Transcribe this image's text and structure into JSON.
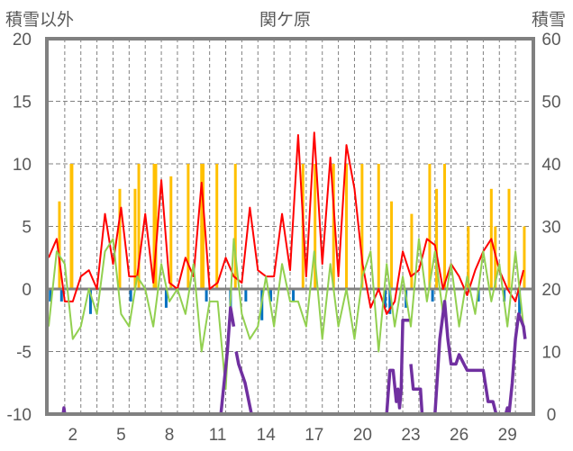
{
  "chart_data": {
    "type": "line",
    "title": "関ケ原",
    "ylabel_left": "積雪以外",
    "ylabel_right": "積雪",
    "ylim_left": [
      -10,
      20
    ],
    "ylim_right": [
      0,
      60
    ],
    "yticks_left": [
      "20",
      "15",
      "10",
      "5",
      "0",
      "-5",
      "-10"
    ],
    "yticks_right": [
      "60",
      "50",
      "40",
      "30",
      "20",
      "10",
      "0"
    ],
    "xlim_days": [
      1,
      31
    ],
    "xticks": [
      "2",
      "5",
      "8",
      "11",
      "14",
      "17",
      "20",
      "23",
      "26",
      "29"
    ],
    "grid": true,
    "colors": {
      "temperature": "#ff0000",
      "green": "#92d050",
      "precip": "#ffc000",
      "sunshine": "#0070c0",
      "snow": "#7030a0"
    },
    "series": [
      {
        "name": "red",
        "axis": "left",
        "x_start": 1,
        "x_step": 0.5,
        "values": [
          2.5,
          4,
          -1,
          -1,
          1,
          1.5,
          0,
          6,
          2,
          6.5,
          1,
          1,
          6,
          0.5,
          8.7,
          0.5,
          0,
          2.5,
          1,
          8.5,
          0,
          0.5,
          2.5,
          1,
          0.5,
          6.5,
          1.5,
          1,
          1,
          6,
          1.5,
          12.3,
          1,
          12.5,
          2,
          10.5,
          1,
          11.5,
          8,
          2,
          -1.5,
          0,
          -2,
          -1,
          3,
          1,
          1.5,
          4,
          3.5,
          0,
          2,
          1,
          -0.5,
          1.5,
          3,
          4,
          1.5,
          0,
          -1,
          1.5
        ]
      },
      {
        "name": "green",
        "axis": "left",
        "x_start": 1,
        "x_step": 0.5,
        "values": [
          -3,
          3,
          2,
          -4,
          -3,
          0,
          -2,
          3,
          4,
          -2,
          -3,
          1,
          0,
          -3,
          2,
          -1,
          0,
          -2,
          2,
          -5,
          -1,
          -1,
          -8,
          4,
          -2,
          -4,
          -3,
          1,
          -3,
          2,
          -1,
          -1,
          -3,
          3,
          -4,
          2,
          -3,
          0,
          -4,
          1,
          3,
          -5,
          2,
          -3,
          1,
          -3,
          4,
          -1,
          3,
          -2,
          2,
          -3,
          1,
          -2,
          3,
          -1,
          2,
          -3,
          3,
          -3
        ]
      },
      {
        "name": "snow",
        "axis": "right",
        "points": [
          [
            1,
            0
          ],
          [
            1.9,
            0
          ],
          [
            1.95,
            1
          ],
          [
            2.0,
            0
          ],
          [
            11.7,
            0
          ],
          [
            12.1,
            10
          ],
          [
            12.3,
            17
          ],
          [
            12.5,
            14
          ],
          null,
          [
            12.65,
            10
          ],
          [
            12.8,
            8
          ],
          [
            13.2,
            5
          ],
          [
            13.6,
            0
          ],
          [
            22.0,
            0
          ],
          [
            22.2,
            7
          ],
          [
            22.4,
            7
          ],
          [
            22.6,
            2
          ],
          [
            22.7,
            4
          ],
          [
            22.8,
            1
          ],
          [
            22.9,
            4
          ],
          [
            23.0,
            15
          ],
          [
            23.4,
            15
          ],
          null,
          [
            23.5,
            8
          ],
          [
            23.65,
            4
          ],
          [
            24.1,
            4
          ],
          [
            24.2,
            0
          ],
          [
            25.0,
            0
          ],
          [
            25.3,
            12
          ],
          [
            25.6,
            18
          ],
          [
            25.8,
            12
          ],
          [
            26.0,
            8
          ],
          [
            26.3,
            8
          ],
          [
            26.5,
            9.5
          ],
          [
            26.8,
            8
          ],
          [
            27.0,
            7
          ],
          [
            28.0,
            7
          ],
          [
            28.3,
            2
          ],
          [
            28.6,
            2
          ],
          [
            28.8,
            0
          ],
          [
            29.4,
            0
          ],
          [
            29.5,
            1
          ],
          [
            29.6,
            0
          ],
          [
            29.8,
            5
          ],
          [
            30.0,
            12
          ],
          [
            30.2,
            16
          ],
          [
            30.5,
            14
          ],
          [
            30.6,
            12
          ]
        ]
      }
    ],
    "bars": [
      {
        "name": "precip",
        "axis": "left",
        "x": [
          1.67,
          2.4,
          2.45,
          5.42,
          6.37,
          6.6,
          7.55,
          7.66,
          8.6,
          9.67,
          10.5,
          10.6,
          11.45,
          12.6,
          16.8,
          17.55,
          18.7,
          19.5,
          20.47,
          21.5,
          22.3,
          23.55,
          24.67,
          25.1,
          25.6,
          27.07,
          28.5,
          28.75,
          29.6,
          30.55
        ],
        "values": [
          7,
          10,
          10,
          8,
          8,
          10,
          10,
          10,
          9,
          10,
          10,
          10,
          10,
          10,
          10,
          10,
          10,
          10,
          10,
          10,
          7,
          6,
          10,
          8,
          10,
          5,
          8,
          5,
          8,
          5
        ]
      },
      {
        "name": "sunshine",
        "axis": "left",
        "x": [
          1.1,
          1.8,
          3.6,
          6.1,
          8.3,
          10.8,
          12.3,
          13.25,
          14.25,
          14.8,
          16.2,
          21.9,
          22.2,
          23.2,
          24.85,
          27.7,
          29.3,
          30.25
        ],
        "values": [
          -1,
          -1,
          -2,
          -1,
          -1.5,
          -1,
          -2.5,
          -1,
          -2.5,
          -1,
          -1,
          -1.5,
          -2,
          -1.5,
          -1,
          -1,
          -1,
          -2
        ]
      }
    ]
  }
}
